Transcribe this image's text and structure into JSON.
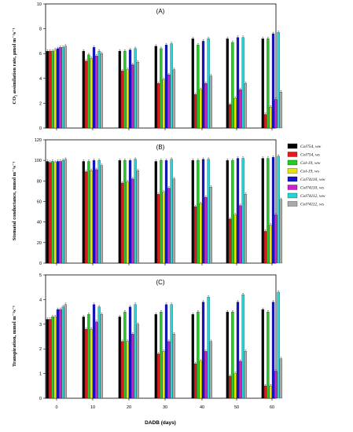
{
  "chart_data": [
    {
      "type": "bar",
      "panel_label": "(A)",
      "ylabel": "CO₂ assimilation rate, µmol m⁻²s⁻¹",
      "ylim": [
        0,
        10
      ],
      "yticks": [
        0,
        2,
        4,
        6,
        8,
        10
      ],
      "categories": [
        "0",
        "10",
        "20",
        "30",
        "40",
        "50",
        "60"
      ],
      "series": [
        {
          "name": "Col754, ww",
          "color": "#000000",
          "values": [
            6.2,
            6.2,
            6.2,
            6.6,
            7.2,
            7.2,
            7.2
          ]
        },
        {
          "name": "Col754, ws",
          "color": "#e41a1c",
          "values": [
            6.2,
            5.4,
            4.6,
            3.6,
            2.7,
            1.9,
            1.1
          ]
        },
        {
          "name": "Col-19, ww",
          "color": "#22cc22",
          "values": [
            6.2,
            5.9,
            6.2,
            6.4,
            6.7,
            6.9,
            7.2
          ]
        },
        {
          "name": "Col-19, ws",
          "color": "#e6e600",
          "values": [
            6.3,
            5.6,
            4.7,
            3.9,
            3.1,
            2.4,
            1.7
          ]
        },
        {
          "name": "Col74110, ww",
          "color": "#1515cc",
          "values": [
            6.4,
            6.5,
            6.3,
            6.7,
            7.0,
            7.3,
            7.6
          ]
        },
        {
          "name": "Col74110, ws",
          "color": "#cc22cc",
          "values": [
            6.5,
            5.8,
            5.1,
            4.3,
            3.6,
            3.1,
            2.3
          ]
        },
        {
          "name": "Col74112, ww",
          "color": "#22d6d6",
          "values": [
            6.5,
            6.2,
            6.4,
            6.8,
            7.2,
            7.3,
            7.7
          ]
        },
        {
          "name": "Col74112, ws",
          "color": "#aaaaaa",
          "values": [
            6.6,
            6.0,
            5.3,
            4.7,
            4.2,
            3.6,
            2.9
          ]
        }
      ]
    },
    {
      "type": "bar",
      "panel_label": "(B)",
      "ylabel": "Stomatal conductance, mmol m⁻²s⁻¹",
      "ylim": [
        0,
        120
      ],
      "yticks": [
        0,
        20,
        40,
        60,
        80,
        100,
        120
      ],
      "categories": [
        "0",
        "10",
        "20",
        "30",
        "40",
        "50",
        "60"
      ],
      "series": [
        {
          "name": "Col754, ww",
          "color": "#000000",
          "values": [
            99,
            99,
            100,
            99,
            100,
            100,
            102
          ]
        },
        {
          "name": "Col754, ws",
          "color": "#e41a1c",
          "values": [
            98,
            89,
            78,
            67,
            55,
            43,
            31
          ]
        },
        {
          "name": "Col-19, ww",
          "color": "#22cc22",
          "values": [
            99,
            99,
            100,
            100,
            100,
            100,
            102
          ]
        },
        {
          "name": "Col-19, ws",
          "color": "#e6e600",
          "values": [
            98,
            90,
            79,
            69,
            58,
            47,
            37
          ]
        },
        {
          "name": "Col74110, ww",
          "color": "#1515cc",
          "values": [
            99,
            100,
            100,
            100,
            101,
            102,
            103
          ]
        },
        {
          "name": "Col74110, ws",
          "color": "#cc22cc",
          "values": [
            99,
            91,
            82,
            73,
            64,
            56,
            47
          ]
        },
        {
          "name": "Col74112, ww",
          "color": "#22d6d6",
          "values": [
            100,
            100,
            101,
            101,
            101,
            102,
            104
          ]
        },
        {
          "name": "Col74112, ws",
          "color": "#aaaaaa",
          "values": [
            101,
            95,
            90,
            82,
            74,
            67,
            62
          ]
        }
      ]
    },
    {
      "type": "bar",
      "panel_label": "(C)",
      "ylabel": "Transpiration, mmol m⁻²s⁻¹",
      "ylim": [
        0,
        5
      ],
      "yticks": [
        0,
        1,
        2,
        3,
        4,
        5
      ],
      "xlabel": "DADB (days)",
      "categories": [
        "0",
        "10",
        "20",
        "30",
        "40",
        "50",
        "60"
      ],
      "series": [
        {
          "name": "Col754, ww",
          "color": "#000000",
          "values": [
            3.2,
            3.3,
            3.3,
            3.4,
            3.4,
            3.5,
            3.6
          ]
        },
        {
          "name": "Col754, ws",
          "color": "#e41a1c",
          "values": [
            3.2,
            2.8,
            2.3,
            1.8,
            1.4,
            0.9,
            0.5
          ]
        },
        {
          "name": "Col-19, ww",
          "color": "#22cc22",
          "values": [
            3.3,
            3.4,
            3.5,
            3.5,
            3.5,
            3.5,
            3.5
          ]
        },
        {
          "name": "Col-19, ws",
          "color": "#e6e600",
          "values": [
            3.3,
            2.8,
            2.3,
            1.9,
            1.5,
            1.0,
            0.5
          ]
        },
        {
          "name": "Col74110, ww",
          "color": "#1515cc",
          "values": [
            3.6,
            3.8,
            3.7,
            3.8,
            3.9,
            3.9,
            3.9
          ]
        },
        {
          "name": "Col74110, ws",
          "color": "#cc22cc",
          "values": [
            3.6,
            3.1,
            2.6,
            2.3,
            1.9,
            1.5,
            1.1
          ]
        },
        {
          "name": "Col74112, ww",
          "color": "#22d6d6",
          "values": [
            3.7,
            3.7,
            3.8,
            3.8,
            4.1,
            4.2,
            4.3
          ]
        },
        {
          "name": "Col74112, ws",
          "color": "#aaaaaa",
          "values": [
            3.8,
            3.4,
            3.0,
            2.6,
            2.3,
            1.9,
            1.6
          ]
        }
      ]
    }
  ],
  "legend_position": "right",
  "legend_entries": [
    "Col754, ww",
    "Col754, ws",
    "Col-19, ww",
    "Col-19, ws",
    "Col74110, ww",
    "Col74110, ws",
    "Col74112, ww",
    "Col74112, ws"
  ],
  "legend_colors": [
    "#000000",
    "#e41a1c",
    "#22cc22",
    "#e6e600",
    "#1515cc",
    "#cc22cc",
    "#22d6d6",
    "#aaaaaa"
  ]
}
